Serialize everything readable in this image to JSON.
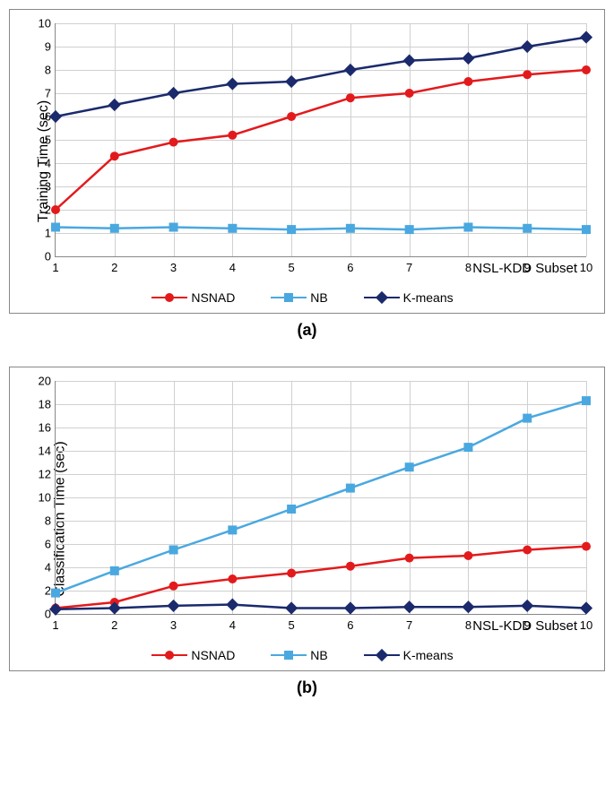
{
  "chart_a": {
    "type": "line",
    "ylabel": "Training Time (sec)",
    "xlabel": "NSL-KDD Subset",
    "sublabel": "(a)",
    "x_values": [
      1,
      2,
      3,
      4,
      5,
      6,
      7,
      8,
      9,
      10
    ],
    "ylim": [
      0,
      10
    ],
    "ytick_step": 1,
    "label_fontsize": 16,
    "tick_fontsize": 13,
    "background_color": "#ffffff",
    "grid_color": "#d0d0d0",
    "series": [
      {
        "name": "NSNAD",
        "color": "#e31a1c",
        "marker": "circle",
        "line_width": 2.5,
        "marker_size": 10,
        "values": [
          2.0,
          4.3,
          4.9,
          5.2,
          6.0,
          6.8,
          7.0,
          7.5,
          7.8,
          8.0
        ]
      },
      {
        "name": "NB",
        "color": "#4aa8e0",
        "marker": "square",
        "line_width": 2.5,
        "marker_size": 10,
        "values": [
          1.25,
          1.2,
          1.25,
          1.2,
          1.15,
          1.2,
          1.15,
          1.25,
          1.2,
          1.15
        ]
      },
      {
        "name": "K-means",
        "color": "#1a2a6c",
        "marker": "diamond",
        "line_width": 2.5,
        "marker_size": 10,
        "values": [
          6.0,
          6.5,
          7.0,
          7.4,
          7.5,
          8.0,
          8.4,
          8.5,
          9.0,
          9.4
        ]
      }
    ]
  },
  "chart_b": {
    "type": "line",
    "ylabel": "Classification Time (sec)",
    "xlabel": "NSL-KDD Subset",
    "sublabel": "(b)",
    "x_values": [
      1,
      2,
      3,
      4,
      5,
      6,
      7,
      8,
      9,
      10
    ],
    "ylim": [
      0,
      20
    ],
    "ytick_step": 2,
    "label_fontsize": 16,
    "tick_fontsize": 13,
    "background_color": "#ffffff",
    "grid_color": "#d0d0d0",
    "series": [
      {
        "name": "NSNAD",
        "color": "#e31a1c",
        "marker": "circle",
        "line_width": 2.5,
        "marker_size": 10,
        "values": [
          0.5,
          1.0,
          2.4,
          3.0,
          3.5,
          4.1,
          4.8,
          5.0,
          5.5,
          5.8
        ]
      },
      {
        "name": "NB",
        "color": "#4aa8e0",
        "marker": "square",
        "line_width": 2.5,
        "marker_size": 10,
        "values": [
          1.8,
          3.7,
          5.5,
          7.2,
          9.0,
          10.8,
          12.6,
          14.3,
          16.8,
          18.3
        ]
      },
      {
        "name": "K-means",
        "color": "#1a2a6c",
        "marker": "diamond",
        "line_width": 2.5,
        "marker_size": 10,
        "values": [
          0.4,
          0.5,
          0.7,
          0.8,
          0.5,
          0.5,
          0.6,
          0.6,
          0.7,
          0.5
        ]
      }
    ]
  },
  "legend_labels": {
    "nsnad": "NSNAD",
    "nb": "NB",
    "kmeans": "K-means"
  }
}
